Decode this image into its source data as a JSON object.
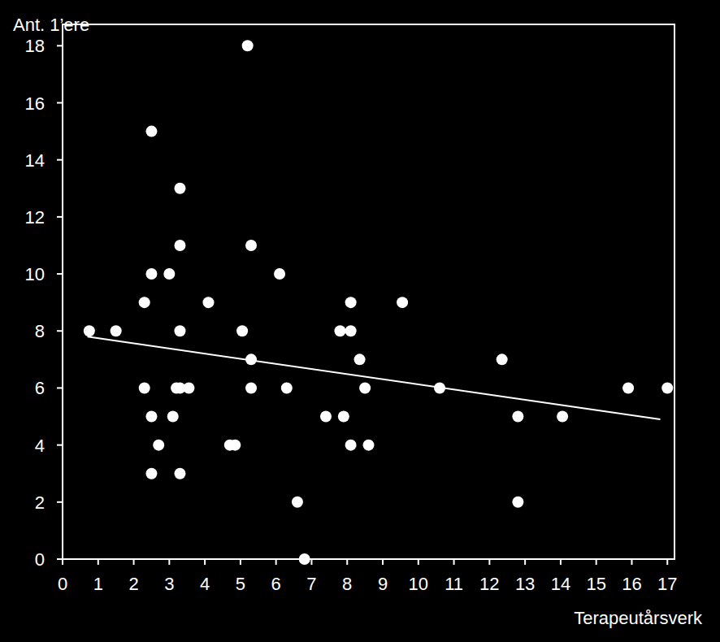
{
  "chart_data": {
    "type": "scatter",
    "x_label": "Terapeutårsverk",
    "y_label": "Ant. 1’ere",
    "x": [
      0.75,
      1.5,
      2.5,
      2.3,
      2.3,
      2.5,
      2.5,
      2.5,
      2.7,
      3.0,
      3.1,
      3.2,
      3.3,
      3.3,
      3.3,
      3.3,
      3.3,
      3.55,
      4.1,
      4.7,
      4.85,
      5.05,
      5.2,
      5.3,
      5.3,
      5.3,
      6.1,
      6.3,
      6.6,
      6.8,
      7.4,
      7.8,
      7.9,
      8.1,
      8.1,
      8.1,
      8.35,
      8.5,
      8.6,
      9.55,
      10.6,
      12.35,
      12.8,
      12.8,
      14.05,
      15.9,
      17.0
    ],
    "values": [
      8,
      8,
      15,
      9,
      6,
      10,
      5,
      3,
      4,
      10,
      5,
      6,
      13,
      11,
      8,
      6,
      3,
      6,
      9,
      4,
      4,
      8,
      18,
      11,
      7,
      6,
      10,
      6,
      2,
      0,
      5,
      8,
      5,
      9,
      8,
      4,
      7,
      6,
      4,
      9,
      6,
      7,
      5,
      2,
      5,
      6,
      6
    ],
    "color": "#ffffff",
    "marker": "circle",
    "trendline": {
      "x": [
        0.7,
        16.8
      ],
      "values": [
        7.8,
        4.9
      ]
    },
    "xlim": [
      0,
      17.2
    ],
    "xticks": [
      0,
      1,
      2,
      3,
      4,
      5,
      6,
      7,
      8,
      9,
      10,
      11,
      12,
      13,
      14,
      15,
      16,
      17
    ],
    "ylim": [
      0,
      18.75
    ],
    "yticks": [
      0,
      2,
      4,
      6,
      8,
      10,
      12,
      14,
      16,
      18
    ],
    "grid": false
  }
}
